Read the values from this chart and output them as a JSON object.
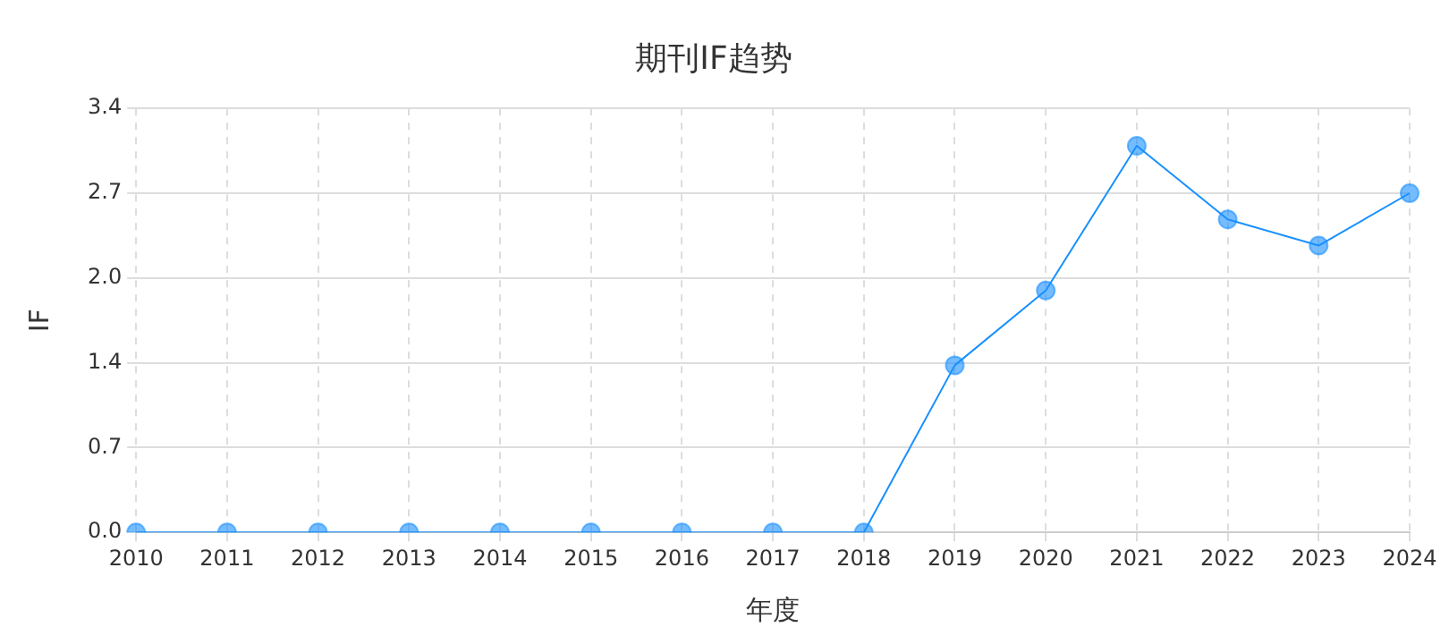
{
  "chart_data": {
    "type": "line",
    "title": "期刊IF趋势",
    "xlabel": "年度",
    "ylabel": "IF",
    "categories": [
      "2010",
      "2011",
      "2012",
      "2013",
      "2014",
      "2015",
      "2016",
      "2017",
      "2018",
      "2019",
      "2020",
      "2021",
      "2022",
      "2023",
      "2024"
    ],
    "series": [
      {
        "color": "#1890ff",
        "values": [
          0,
          0,
          0,
          0,
          0,
          0,
          0,
          0,
          0,
          1.34,
          1.94,
          3.1,
          2.51,
          2.3,
          2.72
        ]
      }
    ],
    "ylim": [
      0,
      3.4
    ],
    "yticks": [
      {
        "value": 0,
        "label": "0.0"
      },
      {
        "value": 0.68,
        "label": "0.7"
      },
      {
        "value": 1.36,
        "label": "1.4"
      },
      {
        "value": 2.04,
        "label": "2.0"
      },
      {
        "value": 2.72,
        "label": "2.7"
      },
      3.4
    ],
    "grid": true,
    "marker": "circle",
    "line_style": "solid"
  }
}
